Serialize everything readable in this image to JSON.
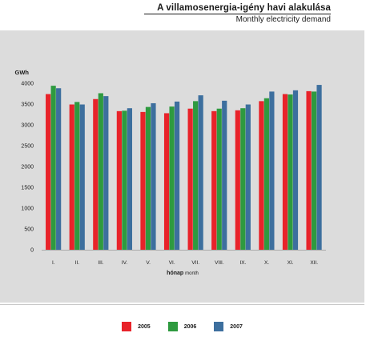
{
  "header": {
    "title": "A villamosenergia-igény havi alakulása",
    "subtitle": "Monthly electricity demand"
  },
  "chart_data": {
    "type": "bar",
    "ylabel": "GWh",
    "xlabel_main": "hónap",
    "xlabel_sub": "month",
    "ylim": [
      0,
      4000
    ],
    "yticks": [
      0,
      500,
      1000,
      1500,
      2000,
      2500,
      3000,
      3500,
      4000
    ],
    "categories": [
      "I.",
      "II.",
      "III.",
      "IV.",
      "V.",
      "VI.",
      "VII.",
      "VIII.",
      "IX.",
      "X.",
      "XI.",
      "XII."
    ],
    "series": [
      {
        "name": "2005",
        "color": "#e8232a",
        "values": [
          3740,
          3490,
          3620,
          3330,
          3310,
          3280,
          3390,
          3330,
          3350,
          3570,
          3740,
          3810
        ]
      },
      {
        "name": "2006",
        "color": "#2e9a3f",
        "values": [
          3940,
          3550,
          3760,
          3340,
          3430,
          3440,
          3570,
          3390,
          3400,
          3640,
          3730,
          3800
        ]
      },
      {
        "name": "2007",
        "color": "#3d6f9e",
        "values": [
          3880,
          3490,
          3690,
          3400,
          3520,
          3560,
          3710,
          3580,
          3490,
          3800,
          3830,
          3960
        ]
      }
    ],
    "grid": false,
    "legend_position": "bottom"
  }
}
